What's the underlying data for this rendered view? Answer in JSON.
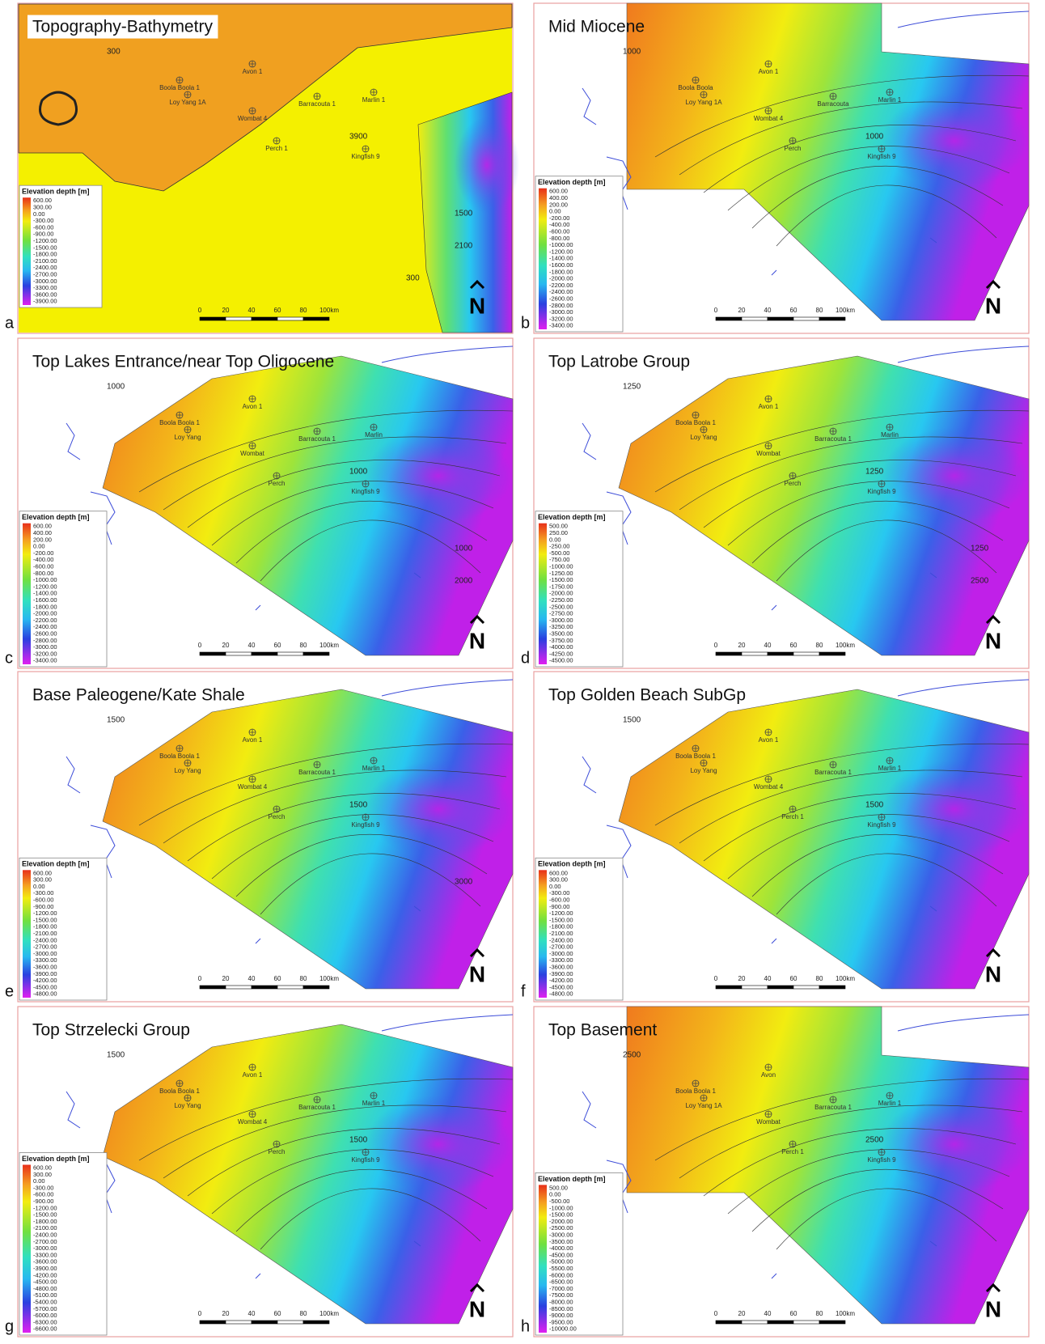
{
  "panels": [
    {
      "letter": "a",
      "title": "Topography-Bathymetry",
      "kind": "topo",
      "legend": {
        "title": "Elevation depth [m]",
        "entries": [
          "600.00",
          "300.00",
          "0.00",
          "-300.00",
          "-600.00",
          "-900.00",
          "-1200.00",
          "-1500.00",
          "-1800.00",
          "-2100.00",
          "-2400.00",
          "-2700.00",
          "-3000.00",
          "-3300.00",
          "-3600.00",
          "-3900.00"
        ]
      },
      "wells": [
        "Boola Boola 1",
        "Avon 1",
        "Loy Yang 1A",
        "Wombat 4",
        "Barracouta 1",
        "Marlin 1",
        "Perch 1",
        "Kingfish 9"
      ],
      "contour_labels": [
        "300",
        "3900",
        "1500",
        "2100",
        "300"
      ],
      "scale": [
        "0",
        "20",
        "40",
        "60",
        "80",
        "100km"
      ],
      "north": "N"
    },
    {
      "letter": "b",
      "title": "Mid Miocene",
      "kind": "block",
      "legend": {
        "title": "Elevation depth [m]",
        "entries": [
          "600.00",
          "400.00",
          "200.00",
          "0.00",
          "-200.00",
          "-400.00",
          "-600.00",
          "-800.00",
          "-1000.00",
          "-1200.00",
          "-1400.00",
          "-1600.00",
          "-1800.00",
          "-2000.00",
          "-2200.00",
          "-2400.00",
          "-2600.00",
          "-2800.00",
          "-3000.00",
          "-3200.00",
          "-3400.00"
        ]
      },
      "wells": [
        "Boola Boola",
        "Avon 1",
        "Loy Yang 1A",
        "Wombat 4",
        "Barracouta",
        "Marlin 1",
        "Perch",
        "Kingfish 9"
      ],
      "contour_labels": [
        "1000",
        "1000"
      ],
      "scale": [
        "0",
        "20",
        "40",
        "60",
        "80",
        "100km"
      ],
      "north": "N"
    },
    {
      "letter": "c",
      "title": "Top Lakes Entrance/near Top Oligocene",
      "kind": "fan",
      "legend": {
        "title": "Elevation depth [m]",
        "entries": [
          "600.00",
          "400.00",
          "200.00",
          "0.00",
          "-200.00",
          "-400.00",
          "-600.00",
          "-800.00",
          "-1000.00",
          "-1200.00",
          "-1400.00",
          "-1600.00",
          "-1800.00",
          "-2000.00",
          "-2200.00",
          "-2400.00",
          "-2600.00",
          "-2800.00",
          "-3000.00",
          "-3200.00",
          "-3400.00"
        ]
      },
      "wells": [
        "Boola Boola 1",
        "Avon 1",
        "Loy Yang",
        "Wombat",
        "Barracouta 1",
        "Marlin",
        "Perch",
        "Kingfish 9"
      ],
      "contour_labels": [
        "1000",
        "1000",
        "1000",
        "2000"
      ],
      "scale": [
        "0",
        "20",
        "40",
        "60",
        "80",
        "100km"
      ],
      "north": "N"
    },
    {
      "letter": "d",
      "title": "Top Latrobe Group",
      "kind": "fan",
      "legend": {
        "title": "Elevation depth [m]",
        "entries": [
          "500.00",
          "250.00",
          "0.00",
          "-250.00",
          "-500.00",
          "-750.00",
          "-1000.00",
          "-1250.00",
          "-1500.00",
          "-1750.00",
          "-2000.00",
          "-2250.00",
          "-2500.00",
          "-2750.00",
          "-3000.00",
          "-3250.00",
          "-3500.00",
          "-3750.00",
          "-4000.00",
          "-4250.00",
          "-4500.00"
        ]
      },
      "wells": [
        "Boola Boola 1",
        "Avon 1",
        "Loy Yang",
        "Wombat",
        "Barracouta 1",
        "Marlin",
        "Perch",
        "Kingfish 9"
      ],
      "contour_labels": [
        "1250",
        "1250",
        "1250",
        "2500"
      ],
      "scale": [
        "0",
        "20",
        "40",
        "60",
        "80",
        "100km"
      ],
      "north": "N"
    },
    {
      "letter": "e",
      "title": "Base Paleogene/Kate Shale",
      "kind": "fan",
      "legend": {
        "title": "Elevation depth [m]",
        "entries": [
          "600.00",
          "300.00",
          "0.00",
          "-300.00",
          "-600.00",
          "-900.00",
          "-1200.00",
          "-1500.00",
          "-1800.00",
          "-2100.00",
          "-2400.00",
          "-2700.00",
          "-3000.00",
          "-3300.00",
          "-3600.00",
          "-3900.00",
          "-4200.00",
          "-4500.00",
          "-4800.00"
        ]
      },
      "wells": [
        "Boola Boola 1",
        "Avon 1",
        "Loy Yang",
        "Wombat 4",
        "Barracouta 1",
        "Marlin 1",
        "Perch",
        "Kingfish 9"
      ],
      "contour_labels": [
        "1500",
        "1500",
        "3000"
      ],
      "scale": [
        "0",
        "20",
        "40",
        "60",
        "80",
        "100km"
      ],
      "north": "N"
    },
    {
      "letter": "f",
      "title": "Top Golden Beach SubGp",
      "kind": "fan",
      "legend": {
        "title": "Elevation depth [m]",
        "entries": [
          "600.00",
          "300.00",
          "0.00",
          "-300.00",
          "-600.00",
          "-900.00",
          "-1200.00",
          "-1500.00",
          "-1800.00",
          "-2100.00",
          "-2400.00",
          "-2700.00",
          "-3000.00",
          "-3300.00",
          "-3600.00",
          "-3900.00",
          "-4200.00",
          "-4500.00",
          "-4800.00"
        ]
      },
      "wells": [
        "Boola Boola 1",
        "Avon 1",
        "Loy Yang",
        "Wombat 4",
        "Barracouta 1",
        "Marlin 1",
        "Perch 1",
        "Kingfish 9"
      ],
      "contour_labels": [
        "1500",
        "1500"
      ],
      "scale": [
        "0",
        "20",
        "40",
        "60",
        "80",
        "100km"
      ],
      "north": "N"
    },
    {
      "letter": "g",
      "title": "Top Strzelecki Group",
      "kind": "fan",
      "legend": {
        "title": "Elevation depth [m]",
        "entries": [
          "600.00",
          "300.00",
          "0.00",
          "-300.00",
          "-600.00",
          "-900.00",
          "-1200.00",
          "-1500.00",
          "-1800.00",
          "-2100.00",
          "-2400.00",
          "-2700.00",
          "-3000.00",
          "-3300.00",
          "-3600.00",
          "-3900.00",
          "-4200.00",
          "-4500.00",
          "-4800.00",
          "-5100.00",
          "-5400.00",
          "-5700.00",
          "-6000.00",
          "-6300.00",
          "-6600.00"
        ]
      },
      "wells": [
        "Boola Boola 1",
        "Avon 1",
        "Loy Yang",
        "Wombat 4",
        "Barracouta 1",
        "Marlin 1",
        "Perch",
        "Kingfish 9"
      ],
      "contour_labels": [
        "1500",
        "1500"
      ],
      "scale": [
        "0",
        "20",
        "40",
        "60",
        "80",
        "100km"
      ],
      "north": "N"
    },
    {
      "letter": "h",
      "title": "Top Basement",
      "kind": "block",
      "legend": {
        "title": "Elevation depth [m]",
        "entries": [
          "500.00",
          "0.00",
          "-500.00",
          "-1000.00",
          "-1500.00",
          "-2000.00",
          "-2500.00",
          "-3000.00",
          "-3500.00",
          "-4000.00",
          "-4500.00",
          "-5000.00",
          "-5500.00",
          "-6000.00",
          "-6500.00",
          "-7000.00",
          "-7500.00",
          "-8000.00",
          "-8500.00",
          "-9000.00",
          "-9500.00",
          "-10000.00"
        ]
      },
      "wells": [
        "Boola Boola 1",
        "Avon",
        "Loy Yang 1A",
        "Wombat",
        "Barracouta 1",
        "Marlin 1",
        "Perch 1",
        "Kingfish 9"
      ],
      "contour_labels": [
        "2500",
        "2500"
      ],
      "scale": [
        "0",
        "20",
        "40",
        "60",
        "80",
        "100km"
      ],
      "north": "N"
    }
  ]
}
